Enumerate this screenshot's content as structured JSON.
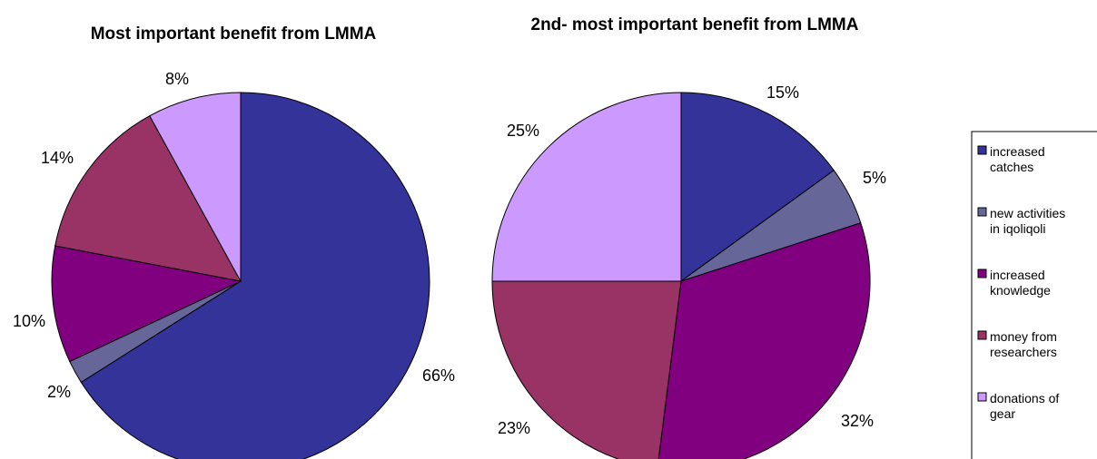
{
  "chart_data": [
    {
      "type": "pie",
      "title": "Most important benefit from LMMA",
      "categories": [
        "increased catches",
        "new activities in iqoliqoli",
        "increased knowledge",
        "money from researchers",
        "donations of gear"
      ],
      "values": [
        66,
        2,
        10,
        14,
        8
      ],
      "labels": [
        "66%",
        "2%",
        "10%",
        "14%",
        "8%"
      ]
    },
    {
      "type": "pie",
      "title": "2nd- most important benefit from LMMA",
      "categories": [
        "increased catches",
        "new activities in iqoliqoli",
        "increased knowledge",
        "money from researchers",
        "donations of gear"
      ],
      "values": [
        15,
        5,
        32,
        23,
        25
      ],
      "labels": [
        "15%",
        "5%",
        "32%",
        "23%",
        "25%"
      ]
    }
  ],
  "legend": {
    "items": [
      {
        "lines": [
          "increased",
          "catches"
        ],
        "color": "#333399"
      },
      {
        "lines": [
          "new activities",
          "in iqoliqoli"
        ],
        "color": "#666699"
      },
      {
        "lines": [
          "increased",
          "knowledge"
        ],
        "color": "#800080"
      },
      {
        "lines": [
          "money from",
          "researchers"
        ],
        "color": "#993366"
      },
      {
        "lines": [
          "donations of",
          "gear"
        ],
        "color": "#CC99FF"
      }
    ]
  }
}
